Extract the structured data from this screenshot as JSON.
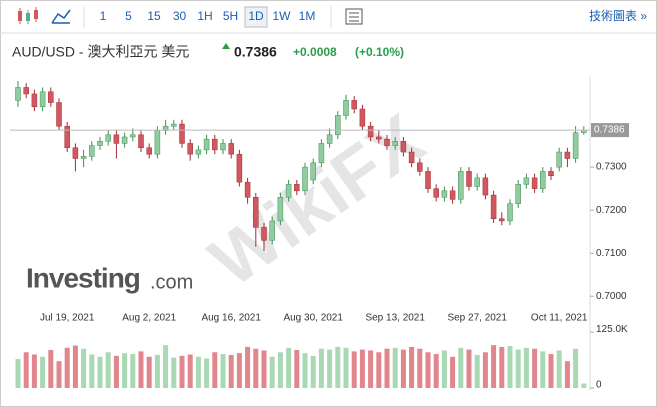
{
  "toolbar": {
    "intervals": [
      "1",
      "5",
      "15",
      "30",
      "1H",
      "5H",
      "1D",
      "1W",
      "1M"
    ],
    "selected_index": 6,
    "link": "技術圖表 »"
  },
  "header": {
    "symbol": "AUD/USD - 澳大利亞元 美元",
    "change": "+0.0008",
    "change_percent": "(+0.10%)"
  },
  "brand": {
    "name": "Investing",
    "suffix": ".com"
  },
  "watermark": "WikiFX",
  "chart_data": {
    "type": "candlestick",
    "categories": [
      null,
      null,
      null,
      null,
      null,
      null,
      "Jul 19, 2021",
      null,
      null,
      null,
      null,
      null,
      null,
      null,
      null,
      null,
      "Aug 2, 2021",
      null,
      null,
      null,
      null,
      null,
      null,
      null,
      null,
      null,
      "Aug 16, 2021",
      null,
      null,
      null,
      null,
      null,
      null,
      null,
      null,
      null,
      "Aug 30, 2021",
      null,
      null,
      null,
      null,
      null,
      null,
      null,
      null,
      null,
      "Sep 13, 2021",
      null,
      null,
      null,
      null,
      null,
      null,
      null,
      null,
      null,
      "Sep 27, 2021",
      null,
      null,
      null,
      null,
      null,
      null,
      null,
      null,
      null,
      "Oct 11, 2021",
      null,
      null,
      null
    ],
    "open": [
      0.7455,
      0.7485,
      0.747,
      0.744,
      0.7475,
      0.745,
      0.7395,
      0.7345,
      0.732,
      0.7325,
      0.735,
      0.736,
      0.7375,
      0.7355,
      0.737,
      0.7375,
      0.7345,
      0.733,
      0.7385,
      0.7395,
      0.74,
      0.7355,
      0.733,
      0.734,
      0.7365,
      0.734,
      0.7355,
      0.733,
      0.7265,
      0.723,
      0.716,
      0.713,
      0.7175,
      0.723,
      0.726,
      0.7245,
      0.727,
      0.731,
      0.7355,
      0.7375,
      0.742,
      0.7455,
      0.7435,
      0.7395,
      0.737,
      0.7365,
      0.735,
      0.736,
      0.7335,
      0.731,
      0.729,
      0.725,
      0.723,
      0.7245,
      0.7225,
      0.729,
      0.7255,
      0.7275,
      0.7235,
      0.718,
      0.7175,
      0.7215,
      0.726,
      0.7275,
      0.725,
      0.729,
      0.73,
      0.7335,
      0.732,
      0.738
    ],
    "high": [
      0.75,
      0.7495,
      0.748,
      0.7485,
      0.7485,
      0.746,
      0.7405,
      0.7355,
      0.734,
      0.736,
      0.737,
      0.7385,
      0.7385,
      0.738,
      0.739,
      0.7385,
      0.7355,
      0.7395,
      0.741,
      0.741,
      0.741,
      0.7365,
      0.735,
      0.7375,
      0.7375,
      0.7365,
      0.7365,
      0.734,
      0.7275,
      0.724,
      0.717,
      0.7185,
      0.724,
      0.727,
      0.727,
      0.731,
      0.732,
      0.7365,
      0.739,
      0.743,
      0.7468,
      0.7465,
      0.7445,
      0.7405,
      0.7385,
      0.7375,
      0.737,
      0.737,
      0.7345,
      0.732,
      0.73,
      0.726,
      0.7255,
      0.7255,
      0.73,
      0.73,
      0.7285,
      0.7285,
      0.7245,
      0.7195,
      0.7225,
      0.727,
      0.7285,
      0.7285,
      0.73,
      0.73,
      0.7345,
      0.7345,
      0.7395,
      0.7395
    ],
    "low": [
      0.744,
      0.746,
      0.743,
      0.743,
      0.744,
      0.7385,
      0.7335,
      0.729,
      0.73,
      0.7315,
      0.734,
      0.735,
      0.732,
      0.7345,
      0.736,
      0.7335,
      0.732,
      0.732,
      0.7375,
      0.7385,
      0.7345,
      0.7315,
      0.732,
      0.733,
      0.733,
      0.733,
      0.732,
      0.7255,
      0.7215,
      0.7115,
      0.7105,
      0.712,
      0.7165,
      0.722,
      0.7235,
      0.7235,
      0.726,
      0.73,
      0.7345,
      0.7365,
      0.741,
      0.7425,
      0.7385,
      0.736,
      0.7355,
      0.734,
      0.734,
      0.7325,
      0.73,
      0.728,
      0.724,
      0.722,
      0.722,
      0.7215,
      0.7215,
      0.7245,
      0.7245,
      0.7225,
      0.717,
      0.7165,
      0.7165,
      0.7205,
      0.725,
      0.724,
      0.724,
      0.727,
      0.729,
      0.73,
      0.731,
      0.7375
    ],
    "close": [
      0.7485,
      0.747,
      0.744,
      0.7475,
      0.745,
      0.7395,
      0.7345,
      0.732,
      0.7325,
      0.735,
      0.736,
      0.7375,
      0.7355,
      0.737,
      0.7375,
      0.7345,
      0.733,
      0.7385,
      0.7395,
      0.74,
      0.7355,
      0.733,
      0.734,
      0.7365,
      0.734,
      0.7355,
      0.733,
      0.7265,
      0.723,
      0.716,
      0.713,
      0.7175,
      0.723,
      0.726,
      0.7245,
      0.73,
      0.731,
      0.7355,
      0.7375,
      0.742,
      0.7455,
      0.7435,
      0.7395,
      0.737,
      0.7365,
      0.735,
      0.736,
      0.7335,
      0.731,
      0.729,
      0.725,
      0.723,
      0.7245,
      0.7225,
      0.729,
      0.7255,
      0.7275,
      0.7235,
      0.718,
      0.7175,
      0.7215,
      0.726,
      0.7275,
      0.725,
      0.729,
      0.728,
      0.7335,
      0.732,
      0.738,
      0.7386
    ],
    "volume": [
      65000,
      80000,
      75000,
      70000,
      85000,
      60000,
      90000,
      95000,
      88000,
      75000,
      70000,
      80000,
      72000,
      78000,
      76000,
      82000,
      70000,
      74000,
      96000,
      68000,
      72000,
      75000,
      70000,
      66000,
      80000,
      76000,
      74000,
      78000,
      92000,
      88000,
      84000,
      70000,
      80000,
      90000,
      85000,
      78000,
      72000,
      88000,
      86000,
      92000,
      90000,
      82000,
      86000,
      84000,
      80000,
      88000,
      90000,
      86000,
      92000,
      88000,
      80000,
      76000,
      84000,
      70000,
      90000,
      86000,
      74000,
      80000,
      96000,
      92000,
      94000,
      86000,
      90000,
      88000,
      82000,
      76000,
      84000,
      60000,
      88000,
      10000
    ],
    "up_color": "#8fcc9f",
    "down_color": "#d3575f",
    "up_volume_color": "#a9d8b4",
    "down_volume_color": "#e0868c",
    "ylim": [
      0.6968,
      0.7514
    ],
    "yticks": [
      {
        "value": 0.7,
        "label": "0.7000"
      },
      {
        "value": 0.71,
        "label": "0.7100"
      },
      {
        "value": 0.72,
        "label": "0.7200"
      },
      {
        "value": 0.73,
        "label": "0.7300"
      }
    ],
    "last_price": {
      "value": 0.7386,
      "label": "0.7386"
    },
    "vlim": [
      0,
      150000
    ],
    "vticks": [
      {
        "value": 0,
        "label": "0"
      },
      {
        "value": 125000,
        "label": "125.0K"
      }
    ]
  }
}
